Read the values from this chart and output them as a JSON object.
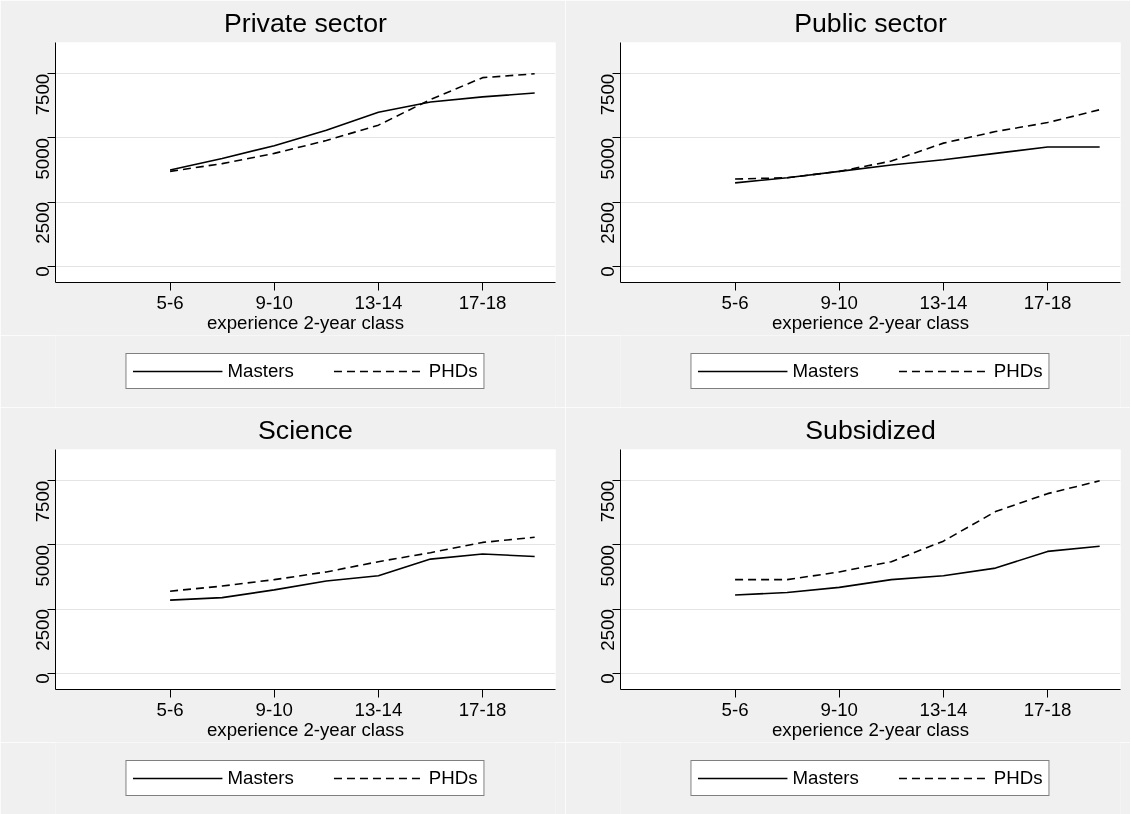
{
  "chart_data": [
    {
      "type": "line",
      "title": "Private sector",
      "xlabel": "experience 2-year class",
      "categories": [
        null,
        null,
        "5-6",
        null,
        "9-10",
        null,
        "13-14",
        null,
        "17-18",
        null
      ],
      "ylim": [
        -630,
        8720
      ],
      "yticks": [
        0,
        2500,
        5000,
        7500
      ],
      "grid": "y",
      "legend": "bottom",
      "series": [
        {
          "name": "Masters",
          "color": "#000000",
          "line_style": "solid",
          "values": [
            null,
            null,
            3750,
            4200,
            4700,
            5300,
            6000,
            6400,
            6600,
            6750
          ]
        },
        {
          "name": "PHDs",
          "color": "#000000",
          "line_style": "dashed",
          "values": [
            null,
            null,
            3700,
            4000,
            4400,
            4900,
            5500,
            6500,
            7350,
            7500
          ]
        }
      ]
    },
    {
      "type": "line",
      "title": "Public sector",
      "xlabel": "experience 2-year class",
      "categories": [
        null,
        null,
        "5-6",
        null,
        "9-10",
        null,
        "13-14",
        null,
        "17-18",
        null
      ],
      "ylim": [
        -630,
        8720
      ],
      "yticks": [
        0,
        2500,
        5000,
        7500
      ],
      "grid": "y",
      "legend": "bottom",
      "series": [
        {
          "name": "Masters",
          "color": "#000000",
          "line_style": "solid",
          "values": [
            null,
            null,
            3250,
            3450,
            3700,
            3950,
            4150,
            4400,
            4650,
            4650
          ]
        },
        {
          "name": "PHDs",
          "color": "#000000",
          "line_style": "dashed",
          "values": [
            null,
            null,
            3400,
            3450,
            3700,
            4100,
            4800,
            5250,
            5600,
            6100
          ]
        }
      ]
    },
    {
      "type": "line",
      "title": "Science",
      "xlabel": "experience 2-year class",
      "categories": [
        null,
        null,
        "5-6",
        null,
        "9-10",
        null,
        "13-14",
        null,
        "17-18",
        null
      ],
      "ylim": [
        -630,
        8720
      ],
      "yticks": [
        0,
        2500,
        5000,
        7500
      ],
      "grid": "y",
      "legend": "bottom",
      "series": [
        {
          "name": "Masters",
          "color": "#000000",
          "line_style": "solid",
          "values": [
            null,
            null,
            2850,
            2950,
            3250,
            3600,
            3800,
            4450,
            4650,
            4550
          ]
        },
        {
          "name": "PHDs",
          "color": "#000000",
          "line_style": "dashed",
          "values": [
            null,
            null,
            3200,
            3400,
            3650,
            3950,
            4350,
            4700,
            5100,
            5300
          ]
        }
      ]
    },
    {
      "type": "line",
      "title": "Subsidized",
      "xlabel": "experience 2-year class",
      "categories": [
        null,
        null,
        "5-6",
        null,
        "9-10",
        null,
        "13-14",
        null,
        "17-18",
        null
      ],
      "ylim": [
        -630,
        8720
      ],
      "yticks": [
        0,
        2500,
        5000,
        7500
      ],
      "grid": "y",
      "legend": "bottom",
      "series": [
        {
          "name": "Masters",
          "color": "#000000",
          "line_style": "solid",
          "values": [
            null,
            null,
            3050,
            3150,
            3350,
            3650,
            3800,
            4100,
            4750,
            4950
          ]
        },
        {
          "name": "PHDs",
          "color": "#000000",
          "line_style": "dashed",
          "values": [
            null,
            null,
            3650,
            3650,
            3950,
            4350,
            5150,
            6300,
            7000,
            7500
          ]
        }
      ]
    }
  ]
}
